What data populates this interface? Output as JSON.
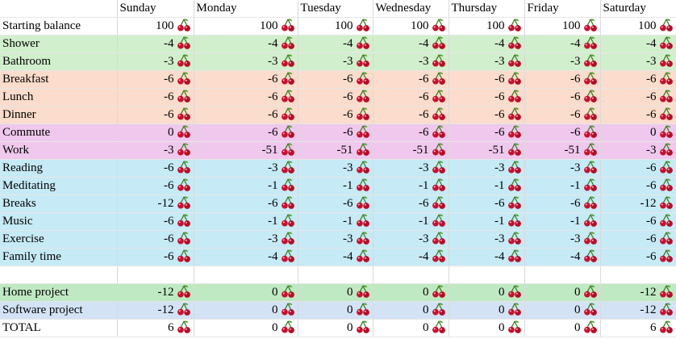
{
  "columns": [
    "",
    "Sunday",
    "Monday",
    "Tuesday",
    "Wednesday",
    "Thursday",
    "Friday",
    "Saturday"
  ],
  "cherry_icon": "cherry-icon",
  "row_colors": {
    "white": "#ffffff",
    "green": "#d2efcd",
    "peach": "#fcdccc",
    "pink": "#f0c8ed",
    "blue": "#c6eaf6",
    "mint": "#bfe9c2",
    "lightblue": "#d3e3f5"
  },
  "rows": [
    {
      "label": "Starting balance",
      "group": "white",
      "values": [
        "100",
        "100",
        "100",
        "100",
        "100",
        "100",
        "100"
      ]
    },
    {
      "label": "Shower",
      "group": "green",
      "values": [
        "-4",
        "-4",
        "-4",
        "-4",
        "-4",
        "-4",
        "-4"
      ]
    },
    {
      "label": "Bathroom",
      "group": "green",
      "values": [
        "-3",
        "-3",
        "-3",
        "-3",
        "-3",
        "-3",
        "-3"
      ]
    },
    {
      "label": "Breakfast",
      "group": "peach",
      "values": [
        "-6",
        "-6",
        "-6",
        "-6",
        "-6",
        "-6",
        "-6"
      ]
    },
    {
      "label": "Lunch",
      "group": "peach",
      "values": [
        "-6",
        "-6",
        "-6",
        "-6",
        "-6",
        "-6",
        "-6"
      ]
    },
    {
      "label": "Dinner",
      "group": "peach",
      "values": [
        "-6",
        "-6",
        "-6",
        "-6",
        "-6",
        "-6",
        "-6"
      ]
    },
    {
      "label": "Commute",
      "group": "pink",
      "values": [
        "0",
        "-6",
        "-6",
        "-6",
        "-6",
        "-6",
        "0"
      ]
    },
    {
      "label": "Work",
      "group": "pink",
      "values": [
        "-3",
        "-51",
        "-51",
        "-51",
        "-51",
        "-51",
        "-3"
      ]
    },
    {
      "label": "Reading",
      "group": "blue",
      "values": [
        "-6",
        "-3",
        "-3",
        "-3",
        "-3",
        "-3",
        "-6"
      ]
    },
    {
      "label": "Meditating",
      "group": "blue",
      "values": [
        "-6",
        "-1",
        "-1",
        "-1",
        "-1",
        "-1",
        "-6"
      ]
    },
    {
      "label": "Breaks",
      "group": "blue",
      "values": [
        "-12",
        "-6",
        "-6",
        "-6",
        "-6",
        "-6",
        "-12"
      ]
    },
    {
      "label": "Music",
      "group": "blue",
      "values": [
        "-6",
        "-1",
        "-1",
        "-1",
        "-1",
        "-1",
        "-6"
      ]
    },
    {
      "label": "Exercise",
      "group": "blue",
      "values": [
        "-6",
        "-3",
        "-3",
        "-3",
        "-3",
        "-3",
        "-6"
      ]
    },
    {
      "label": "Family time",
      "group": "blue",
      "values": [
        "-6",
        "-4",
        "-4",
        "-4",
        "-4",
        "-4",
        "-6"
      ]
    },
    {
      "label": "",
      "group": "empty",
      "values": [
        "",
        "",
        "",
        "",
        "",
        "",
        ""
      ]
    },
    {
      "label": "Home project",
      "group": "mint",
      "values": [
        "-12",
        "0",
        "0",
        "0",
        "0",
        "0",
        "-12"
      ]
    },
    {
      "label": "Software project",
      "group": "lightblue",
      "values": [
        "-12",
        "0",
        "0",
        "0",
        "0",
        "0",
        "-12"
      ]
    },
    {
      "label": "TOTAL",
      "group": "total",
      "values": [
        "6",
        "0",
        "0",
        "0",
        "0",
        "0",
        "6"
      ]
    }
  ]
}
